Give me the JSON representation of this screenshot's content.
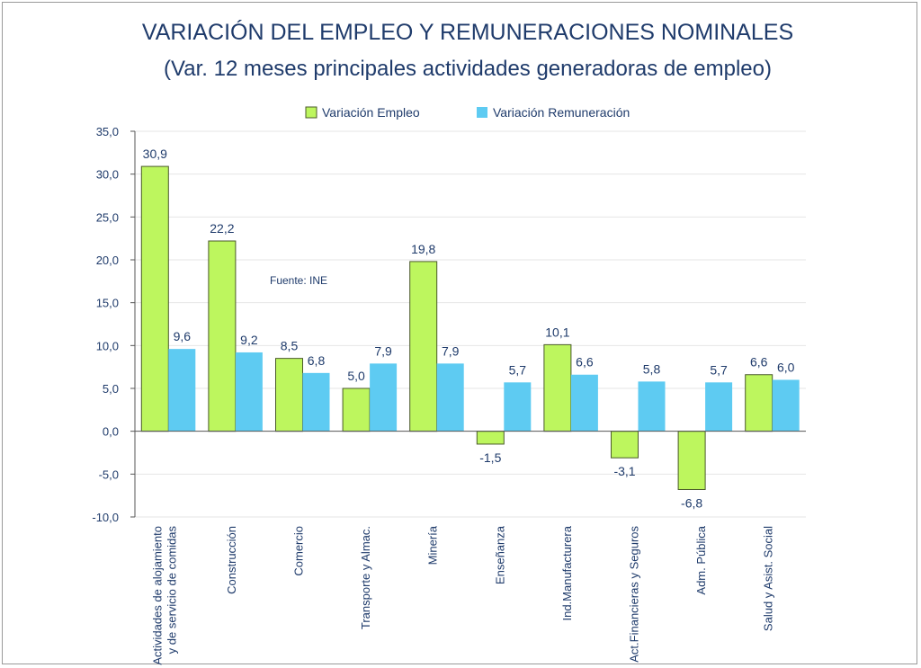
{
  "chart_data": {
    "type": "bar",
    "title": "VARIACIÓN DEL EMPLEO Y REMUNERACIONES NOMINALES",
    "subtitle": "(Var. 12 meses principales actividades generadoras de empleo)",
    "annotation": "Fuente: INE",
    "xlabel": "",
    "ylabel": "",
    "ylim": [
      -10,
      35
    ],
    "yticks": [
      -10,
      -5,
      0,
      5,
      10,
      15,
      20,
      25,
      30,
      35
    ],
    "ytick_labels": [
      "-10,0",
      "-5,0",
      "0,0",
      "5,0",
      "10,0",
      "15,0",
      "20,0",
      "25,0",
      "30,0",
      "35,0"
    ],
    "grid": true,
    "legend_position": "top-center",
    "categories": [
      [
        "Actividades de alojamiento",
        "y de servicio de comidas"
      ],
      [
        "Construcción"
      ],
      [
        "Comercio"
      ],
      [
        "Transporte y Almac."
      ],
      [
        "Minería"
      ],
      [
        "Enseñanza"
      ],
      [
        "Ind.Manufacturera"
      ],
      [
        "Act.Financieras y Seguros"
      ],
      [
        "Adm. Pública"
      ],
      [
        "Salud y Asist. Social"
      ]
    ],
    "series": [
      {
        "name": "Variación Empleo",
        "color": "#bdf65e",
        "values": [
          30.9,
          22.2,
          8.5,
          5.0,
          19.8,
          -1.5,
          10.1,
          -3.1,
          -6.8,
          6.6
        ],
        "labels": [
          "30,9",
          "22,2",
          "8,5",
          "5,0",
          "19,8",
          "-1,5",
          "10,1",
          "-3,1",
          "-6,8",
          "6,6"
        ]
      },
      {
        "name": "Variación Remuneración",
        "color": "#5ecbf2",
        "values": [
          9.6,
          9.2,
          6.8,
          7.9,
          7.9,
          5.7,
          6.6,
          5.8,
          5.7,
          6.0
        ],
        "labels": [
          "9,6",
          "9,2",
          "6,8",
          "7,9",
          "7,9",
          "5,7",
          "6,6",
          "5,8",
          "5,7",
          "6,0"
        ]
      }
    ]
  },
  "colors": {
    "text": "#1f3b6b",
    "axis": "#555555",
    "grid": "#e6e6e6"
  }
}
